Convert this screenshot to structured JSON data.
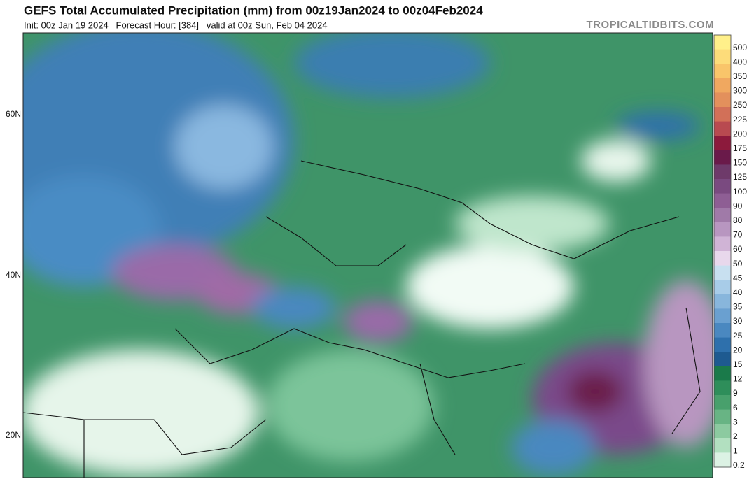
{
  "header": {
    "title": "GEFS Total Accumulated Precipitation (mm) from 00z19Jan2024 to 00z04Feb2024",
    "subtitle": "Init: 00z Jan 19 2024   Forecast Hour: [384]   valid at 00z Sun, Feb 04 2024",
    "credit": "TROPICALTIDBITS.COM"
  },
  "map": {
    "latitude_labels": [
      "60N",
      "40N",
      "20N"
    ]
  },
  "colorbar": {
    "levels": [
      {
        "label": "500",
        "color": "#fff08a"
      },
      {
        "label": "400",
        "color": "#fddc7a"
      },
      {
        "label": "350",
        "color": "#f9c56a"
      },
      {
        "label": "300",
        "color": "#f0a860"
      },
      {
        "label": "250",
        "color": "#e3905c"
      },
      {
        "label": "225",
        "color": "#d27058"
      },
      {
        "label": "200",
        "color": "#b84a50"
      },
      {
        "label": "175",
        "color": "#8c1a3c"
      },
      {
        "label": "150",
        "color": "#6a1a4a"
      },
      {
        "label": "125",
        "color": "#6e3a6a"
      },
      {
        "label": "100",
        "color": "#7a4a80"
      },
      {
        "label": "90",
        "color": "#8e5e94"
      },
      {
        "label": "80",
        "color": "#a07aa8"
      },
      {
        "label": "70",
        "color": "#b896c0"
      },
      {
        "label": "60",
        "color": "#d0b4d6"
      },
      {
        "label": "50",
        "color": "#e8d8ec"
      },
      {
        "label": "45",
        "color": "#c8e0f0"
      },
      {
        "label": "40",
        "color": "#a8cce8"
      },
      {
        "label": "35",
        "color": "#88b6dc"
      },
      {
        "label": "30",
        "color": "#6aa0d0"
      },
      {
        "label": "25",
        "color": "#4a88c0"
      },
      {
        "label": "20",
        "color": "#2e70ac"
      },
      {
        "label": "15",
        "color": "#1e5a90"
      },
      {
        "label": "12",
        "color": "#1a7a4a"
      },
      {
        "label": "9",
        "color": "#2e8e5a"
      },
      {
        "label": "6",
        "color": "#48a06c"
      },
      {
        "label": "3",
        "color": "#68b484"
      },
      {
        "label": "2",
        "color": "#8ccaa0"
      },
      {
        "label": "1",
        "color": "#b2e0c0"
      },
      {
        "label": "0.2",
        "color": "#dcf2e4"
      }
    ]
  }
}
